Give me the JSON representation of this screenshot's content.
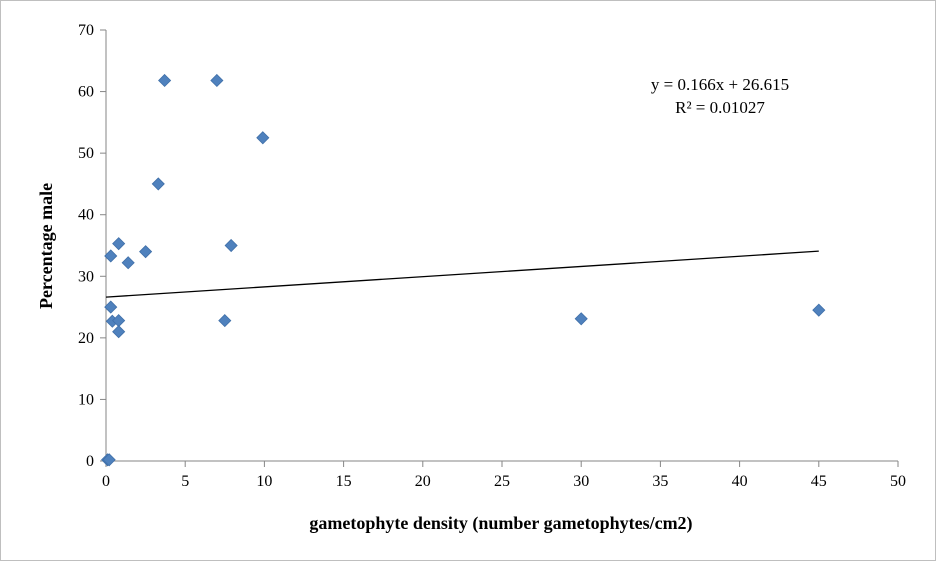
{
  "chart_data": {
    "type": "scatter",
    "title": "",
    "xlabel": "gametophyte density (number gametophytes/cm2)",
    "ylabel": "Percentage male",
    "xlim": [
      0,
      50
    ],
    "ylim": [
      0,
      70
    ],
    "x_ticks": [
      0,
      5,
      10,
      15,
      20,
      25,
      30,
      35,
      40,
      45,
      50
    ],
    "y_ticks": [
      0,
      10,
      20,
      30,
      40,
      50,
      60,
      70
    ],
    "grid": false,
    "legend": "none",
    "marker_color": "#4f81bd",
    "trendline_color": "#000000",
    "series": [
      {
        "x": [
          0.1,
          0.2,
          0.3,
          0.3,
          0.4,
          0.8,
          0.8,
          0.8,
          1.4,
          2.5,
          3.3,
          3.7,
          7.0,
          7.5,
          7.9,
          9.9,
          30.0,
          45.0
        ],
        "y": [
          0.2,
          0.2,
          33.3,
          25.0,
          22.7,
          35.3,
          22.8,
          21.0,
          32.2,
          34.0,
          45.0,
          61.8,
          61.8,
          22.8,
          35.0,
          52.5,
          23.1,
          24.5
        ]
      }
    ],
    "trendline": {
      "slope": 0.166,
      "intercept": 26.615,
      "x_range": [
        0,
        45
      ],
      "equation_label": "y = 0.166x + 26.615",
      "r2_label": "R² = 0.01027"
    }
  }
}
